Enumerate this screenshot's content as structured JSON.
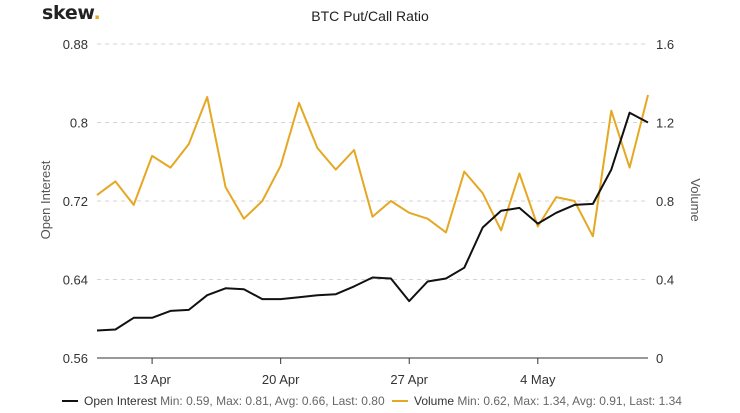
{
  "logo": {
    "text": "skew",
    "dot": "."
  },
  "chart_data": {
    "type": "line",
    "title": "BTC Put/Call Ratio",
    "x_ticks": [
      "13 Apr",
      "20 Apr",
      "27 Apr",
      "4 May"
    ],
    "y_left": {
      "label": "Open Interest",
      "range": [
        0.56,
        0.88
      ],
      "ticks": [
        "0.56",
        "0.64",
        "0.72",
        "0.8",
        "0.88"
      ]
    },
    "y_right": {
      "label": "Volume",
      "range": [
        0,
        1.6
      ],
      "ticks": [
        "0",
        "0.4",
        "0.8",
        "1.2",
        "1.6"
      ]
    },
    "grid": "horizontal dashed",
    "legend_position": "bottom",
    "series": [
      {
        "name": "Open Interest",
        "color": "#111111",
        "axis": "left",
        "stats": "Min: 0.59, Max: 0.81, Avg: 0.66, Last: 0.80",
        "values": [
          0.588,
          0.589,
          0.601,
          0.601,
          0.608,
          0.609,
          0.624,
          0.631,
          0.63,
          0.62,
          0.62,
          0.622,
          0.624,
          0.625,
          0.633,
          0.642,
          0.641,
          0.618,
          0.638,
          0.641,
          0.652,
          0.693,
          0.71,
          0.713,
          0.697,
          0.708,
          0.716,
          0.717,
          0.752,
          0.81,
          0.8
        ]
      },
      {
        "name": "Volume",
        "color": "#e5a823",
        "axis": "right",
        "stats": "Min: 0.62, Max: 1.34, Avg: 0.91, Last: 1.34",
        "values": [
          0.83,
          0.9,
          0.78,
          1.03,
          0.97,
          1.09,
          1.33,
          0.87,
          0.71,
          0.8,
          0.98,
          1.3,
          1.07,
          0.96,
          1.06,
          0.72,
          0.8,
          0.74,
          0.71,
          0.64,
          0.95,
          0.84,
          0.65,
          0.94,
          0.67,
          0.82,
          0.8,
          0.62,
          1.26,
          0.97,
          1.34
        ]
      }
    ]
  }
}
